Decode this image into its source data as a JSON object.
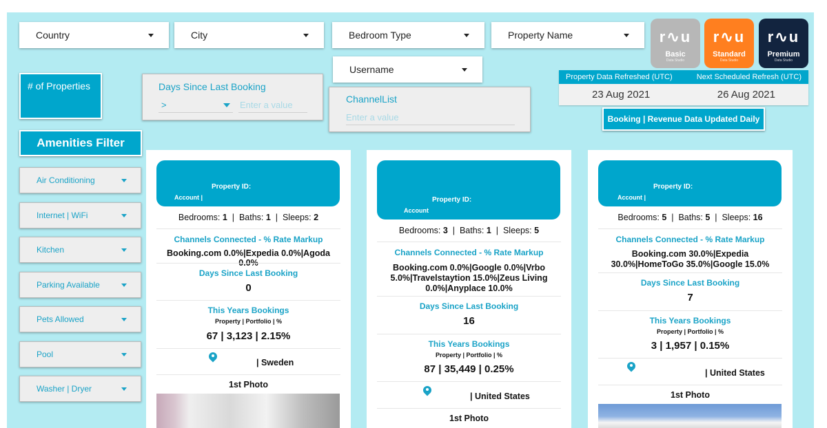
{
  "filters": {
    "country": "Country",
    "city": "City",
    "bedroom_type": "Bedroom Type",
    "property_name": "Property Name",
    "username": "Username"
  },
  "plans": {
    "basic": "Basic",
    "standard": "Standard",
    "premium": "Premium",
    "sub": "Data Studio"
  },
  "metrics": {
    "num_properties_label": "# of Properties"
  },
  "days_filter": {
    "label": "Days Since Last Booking",
    "operator": ">",
    "placeholder": "Enter a value"
  },
  "channel_filter": {
    "label": "ChannelList",
    "placeholder": "Enter a value"
  },
  "refresh": {
    "col1": "Property Data Refreshed (UTC)",
    "col2": "Next Scheduled Refresh (UTC)",
    "val1": "23 Aug 2021",
    "val2": "26 Aug 2021",
    "banner": "Booking | Revenue Data Updated Daily"
  },
  "amenities": {
    "title": "Amenities Filter",
    "items": [
      "Air Conditioning",
      "Internet | WiFi",
      "Kitchen",
      "Parking Available",
      "Pets Allowed",
      "Pool",
      "Washer | Dryer"
    ]
  },
  "cards": [
    {
      "property_id_label": "Property ID:",
      "account_label": "Account |",
      "bedrooms_label": "Bedrooms:",
      "bedrooms": "1",
      "baths_label": "Baths:",
      "baths": "1",
      "sleeps_label": "Sleeps:",
      "sleeps": "2",
      "channels_title": "Channels Connected - % Rate Markup",
      "channels": "Booking.com 0.0%|Expedia 0.0%|Agoda 0.0%",
      "days_title": "Days Since Last Booking",
      "days": "0",
      "bookings_title": "This Years Bookings",
      "bookings_sub": "Property  |  Portfolio  |  %",
      "bookings": "67  |  3,123  |  2.15%",
      "location": "| Sweden",
      "photo_title": "1st Photo"
    },
    {
      "property_id_label": "Property ID:",
      "account_label": "Account",
      "bedrooms_label": "Bedrooms:",
      "bedrooms": "3",
      "baths_label": "Baths:",
      "baths": "1",
      "sleeps_label": "Sleeps:",
      "sleeps": "5",
      "channels_title": "Channels Connected - % Rate Markup",
      "channels": "Booking.com 0.0%|Google 0.0%|Vrbo 5.0%|Travelstaytion 15.0%|Zeus Living 0.0%|Anyplace 10.0%",
      "days_title": "Days Since Last Booking",
      "days": "16",
      "bookings_title": "This Years Bookings",
      "bookings_sub": "Property  |  Portfolio  |  %",
      "bookings": "87  |  35,449  |  0.25%",
      "location": "| United States",
      "photo_title": "1st Photo"
    },
    {
      "property_id_label": "Property ID:",
      "account_label": "Account |",
      "bedrooms_label": "Bedrooms:",
      "bedrooms": "5",
      "baths_label": "Baths:",
      "baths": "5",
      "sleeps_label": "Sleeps:",
      "sleeps": "16",
      "channels_title": "Channels Connected - % Rate Markup",
      "channels": "Booking.com 30.0%|Expedia 30.0%|HomeToGo 35.0%|Google 15.0%",
      "days_title": "Days Since Last Booking",
      "days": "7",
      "bookings_title": "This Years Bookings",
      "bookings_sub": "Property  |  Portfolio  |  %",
      "bookings": "3  |  1,957  |  0.15%",
      "location": "| United States",
      "photo_title": "1st Photo"
    }
  ]
}
